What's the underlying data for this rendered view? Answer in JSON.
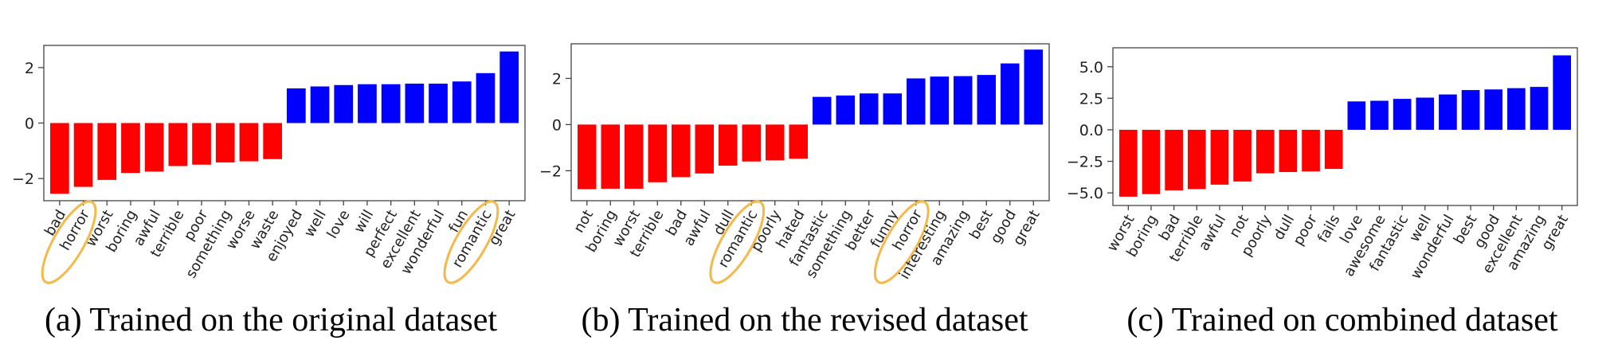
{
  "chart_data": [
    {
      "type": "bar",
      "categories": [
        "bad",
        "horror",
        "worst",
        "boring",
        "awful",
        "terrible",
        "poor",
        "something",
        "worse",
        "waste",
        "enjoyed",
        "well",
        "love",
        "will",
        "perfect",
        "excellent",
        "wonderful",
        "fun",
        "romantic",
        "great"
      ],
      "values": [
        -2.55,
        -2.3,
        -2.05,
        -1.8,
        -1.75,
        -1.55,
        -1.5,
        -1.42,
        -1.38,
        -1.3,
        1.25,
        1.32,
        1.37,
        1.4,
        1.4,
        1.42,
        1.42,
        1.5,
        1.8,
        2.58
      ],
      "ylim": [
        -2.8,
        2.8
      ],
      "yticks": [
        -2,
        0,
        2
      ],
      "ytick_labels": [
        "−2",
        "0",
        "2"
      ],
      "highlighted": [
        "horror",
        "romantic"
      ],
      "caption": "(a) Trained on the original dataset"
    },
    {
      "type": "bar",
      "categories": [
        "not",
        "boring",
        "worst",
        "terrible",
        "bad",
        "awful",
        "dull",
        "romantic",
        "poorly",
        "hated",
        "fantastic",
        "something",
        "better",
        "funny",
        "horror",
        "interesting",
        "amazing",
        "best",
        "good",
        "great"
      ],
      "values": [
        -2.8,
        -2.78,
        -2.78,
        -2.5,
        -2.28,
        -2.12,
        -1.78,
        -1.6,
        -1.55,
        -1.48,
        1.2,
        1.26,
        1.35,
        1.35,
        2.0,
        2.08,
        2.1,
        2.15,
        2.65,
        3.25
      ],
      "ylim": [
        -3.3,
        3.5
      ],
      "yticks": [
        -2,
        0,
        2
      ],
      "ytick_labels": [
        "−2",
        "0",
        "2"
      ],
      "highlighted": [
        "romantic",
        "horror"
      ],
      "caption": "(b) Trained on the revised dataset"
    },
    {
      "type": "bar",
      "categories": [
        "worst",
        "boring",
        "bad",
        "terrible",
        "awful",
        "not",
        "poorly",
        "dull",
        "poor",
        "fails",
        "love",
        "awesome",
        "fantastic",
        "well",
        "wonderful",
        "best",
        "good",
        "excellent",
        "amazing",
        "great"
      ],
      "values": [
        -5.3,
        -5.1,
        -4.8,
        -4.7,
        -4.35,
        -4.1,
        -3.45,
        -3.35,
        -3.3,
        -3.1,
        2.25,
        2.3,
        2.45,
        2.55,
        2.8,
        3.15,
        3.2,
        3.3,
        3.4,
        5.9
      ],
      "ylim": [
        -6.0,
        6.5
      ],
      "yticks": [
        -5.0,
        -2.5,
        0.0,
        2.5,
        5.0
      ],
      "ytick_labels": [
        "−5.0",
        "−2.5",
        "0.0",
        "2.5",
        "5.0"
      ],
      "highlighted": [],
      "caption": "(c) Trained on combined dataset"
    }
  ],
  "colors": {
    "negative": "#ff0000",
    "positive": "#0000ff",
    "highlight": "#f5b94a",
    "axes": "#444444"
  }
}
